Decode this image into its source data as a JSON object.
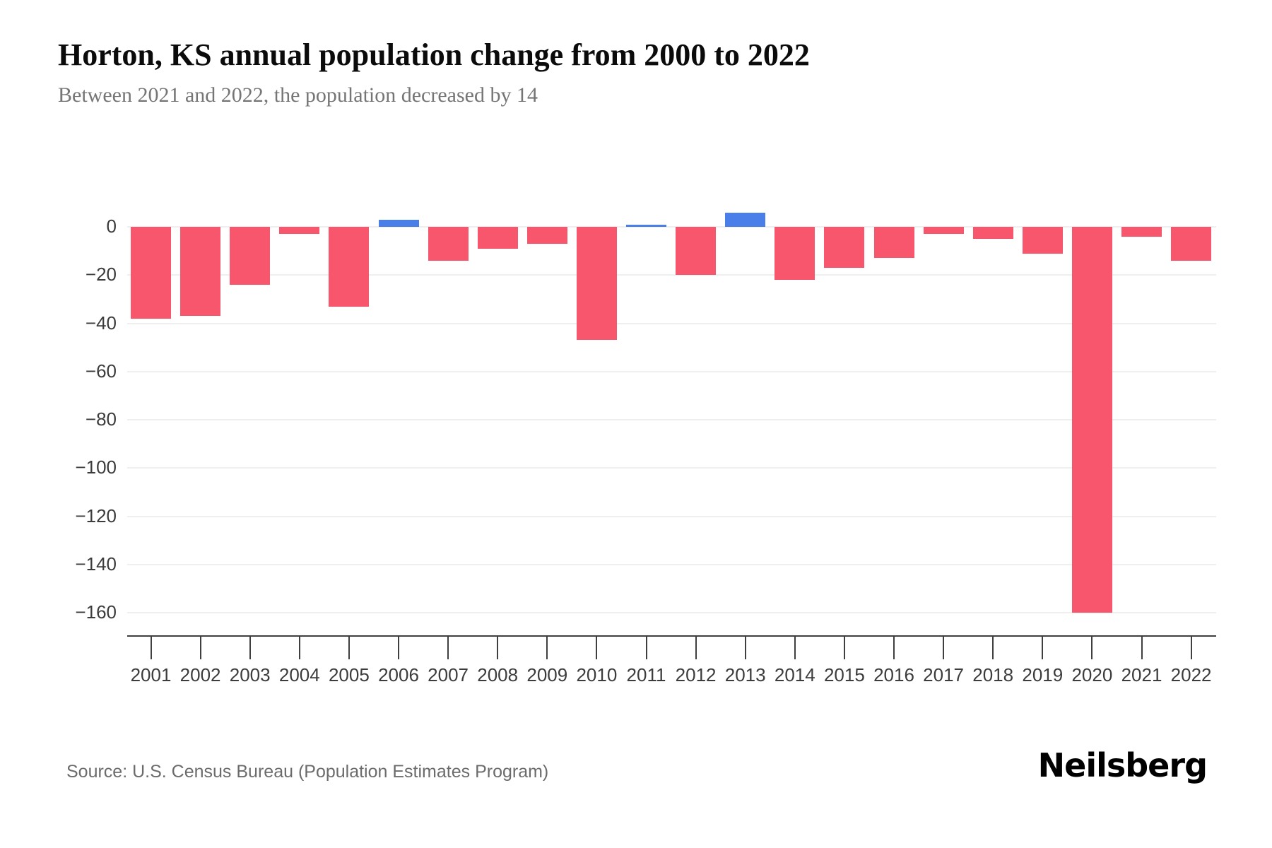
{
  "title": "Horton, KS annual population change from 2000 to 2022",
  "subtitle": "Between 2021 and 2022, the population decreased by 14",
  "source": "Source: U.S. Census Bureau (Population Estimates Program)",
  "brand": "Neilsberg",
  "colors": {
    "negative_bar": "#F8566D",
    "positive_bar": "#4A7EE8",
    "grid": "#efefef",
    "axis": "#3f3f3f",
    "tick_label": "#3c3c3c",
    "title_text": "#0b0b0b",
    "subtitle_text": "#757575",
    "source_text": "#6b6b6b",
    "background": "#ffffff"
  },
  "chart_data": {
    "type": "bar",
    "title": "Horton, KS annual population change from 2000 to 2022",
    "subtitle": "Between 2021 and 2022, the population decreased by 14",
    "xlabel": "",
    "ylabel": "",
    "categories": [
      2001,
      2002,
      2003,
      2004,
      2005,
      2006,
      2007,
      2008,
      2009,
      2010,
      2011,
      2012,
      2013,
      2014,
      2015,
      2016,
      2017,
      2018,
      2019,
      2020,
      2021,
      2022
    ],
    "values": [
      -38,
      -37,
      -24,
      -3,
      -33,
      3,
      -14,
      -9,
      -7,
      -47,
      1,
      -20,
      6,
      -22,
      -17,
      -13,
      -3,
      -5,
      -11,
      -160,
      -4,
      -14
    ],
    "ylim": [
      -160,
      10
    ],
    "yticks": [
      0,
      -20,
      -40,
      -60,
      -80,
      -100,
      -120,
      -140,
      -160
    ],
    "ytick_labels": [
      "0",
      "−20",
      "−40",
      "−60",
      "−80",
      "−100",
      "−120",
      "−140",
      "−160"
    ],
    "grid": true,
    "legend": false,
    "bar_color_rule": "negative values pink (#F8566D), positive values blue (#4A7EE8)"
  }
}
